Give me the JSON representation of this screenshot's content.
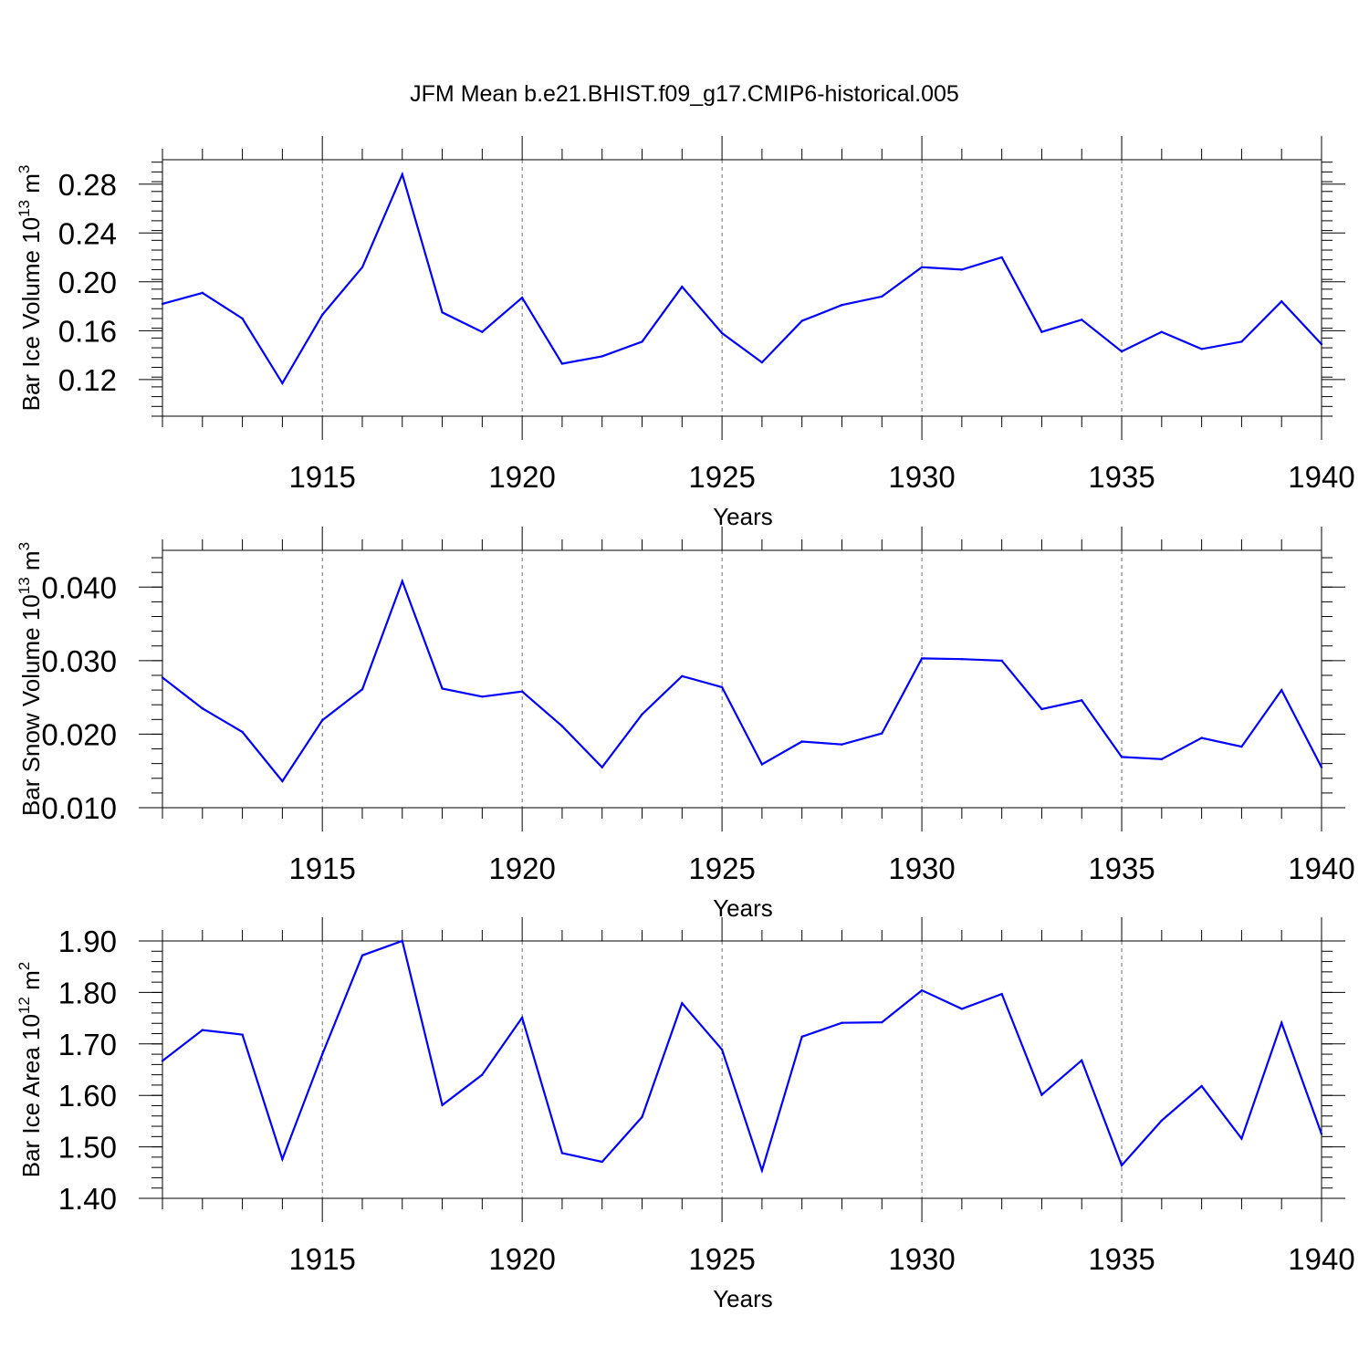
{
  "title": "JFM Mean b.e21.BHIST.f09_g17.CMIP6-historical.005",
  "colors": {
    "line": "#0000ff",
    "axis": "#000000",
    "background": "#ffffff"
  },
  "chart_data": [
    {
      "type": "line",
      "ylabel": {
        "main": "Bar Ice Volume 10",
        "exp": "13",
        "unit": " m",
        "unit_exp": "3"
      },
      "xlabel": "Years",
      "xlim": [
        1911,
        1940
      ],
      "ylim": [
        0.09,
        0.3
      ],
      "yticks": [
        0.12,
        0.16,
        0.2,
        0.24,
        0.28
      ],
      "ytick_labels": [
        "0.12",
        "0.16",
        "0.20",
        "0.24",
        "0.28"
      ],
      "xticks": [
        1915,
        1920,
        1925,
        1930,
        1935,
        1940
      ],
      "xtick_labels": [
        "1915",
        "1920",
        "1925",
        "1930",
        "1935",
        "1940"
      ],
      "grid": "vertical dashed at major x ticks",
      "x": [
        1911,
        1912,
        1913,
        1914,
        1915,
        1916,
        1917,
        1918,
        1919,
        1920,
        1921,
        1922,
        1923,
        1924,
        1925,
        1926,
        1927,
        1928,
        1929,
        1930,
        1931,
        1932,
        1933,
        1934,
        1935,
        1936,
        1937,
        1938,
        1939,
        1940
      ],
      "values": [
        0.182,
        0.191,
        0.17,
        0.117,
        0.173,
        0.212,
        0.288,
        0.175,
        0.159,
        0.187,
        0.133,
        0.139,
        0.151,
        0.196,
        0.158,
        0.134,
        0.168,
        0.181,
        0.188,
        0.212,
        0.21,
        0.22,
        0.159,
        0.169,
        0.143,
        0.159,
        0.145,
        0.151,
        0.184,
        0.149
      ]
    },
    {
      "type": "line",
      "ylabel": {
        "main": "Bar Snow Volume 10",
        "exp": "13",
        "unit": " m",
        "unit_exp": "3"
      },
      "xlabel": "Years",
      "xlim": [
        1911,
        1940
      ],
      "ylim": [
        0.01,
        0.045
      ],
      "yticks": [
        0.01,
        0.02,
        0.03,
        0.04
      ],
      "ytick_labels": [
        "0.010",
        "0.020",
        "0.030",
        "0.040"
      ],
      "xticks": [
        1915,
        1920,
        1925,
        1930,
        1935,
        1940
      ],
      "xtick_labels": [
        "1915",
        "1920",
        "1925",
        "1930",
        "1935",
        "1940"
      ],
      "grid": "vertical dashed at major x ticks",
      "x": [
        1911,
        1912,
        1913,
        1914,
        1915,
        1916,
        1917,
        1918,
        1919,
        1920,
        1921,
        1922,
        1923,
        1924,
        1925,
        1926,
        1927,
        1928,
        1929,
        1930,
        1931,
        1932,
        1933,
        1934,
        1935,
        1936,
        1937,
        1938,
        1939,
        1940
      ],
      "values": [
        0.0277,
        0.0235,
        0.0203,
        0.0136,
        0.0219,
        0.0261,
        0.0408,
        0.0262,
        0.0251,
        0.0258,
        0.0211,
        0.0155,
        0.0227,
        0.0279,
        0.0264,
        0.0159,
        0.019,
        0.0186,
        0.0201,
        0.0303,
        0.0302,
        0.03,
        0.0234,
        0.0246,
        0.0169,
        0.0166,
        0.0195,
        0.0183,
        0.026,
        0.0155
      ]
    },
    {
      "type": "line",
      "ylabel": {
        "main": "Bar Ice Area 10",
        "exp": "12",
        "unit": " m",
        "unit_exp": "2"
      },
      "xlabel": "Years",
      "xlim": [
        1911,
        1940
      ],
      "ylim": [
        1.4,
        1.9
      ],
      "yticks": [
        1.4,
        1.5,
        1.6,
        1.7,
        1.8,
        1.9
      ],
      "ytick_labels": [
        "1.40",
        "1.50",
        "1.60",
        "1.70",
        "1.80",
        "1.90"
      ],
      "xticks": [
        1915,
        1920,
        1925,
        1930,
        1935,
        1940
      ],
      "xtick_labels": [
        "1915",
        "1920",
        "1925",
        "1930",
        "1935",
        "1940"
      ],
      "grid": "vertical dashed at major x ticks",
      "x": [
        1911,
        1912,
        1913,
        1914,
        1915,
        1916,
        1917,
        1918,
        1919,
        1920,
        1921,
        1922,
        1923,
        1924,
        1925,
        1926,
        1927,
        1928,
        1929,
        1930,
        1931,
        1932,
        1933,
        1934,
        1935,
        1936,
        1937,
        1938,
        1939,
        1940
      ],
      "values": [
        1.667,
        1.727,
        1.718,
        1.476,
        1.68,
        1.872,
        1.9,
        1.581,
        1.64,
        1.751,
        1.488,
        1.471,
        1.558,
        1.779,
        1.689,
        1.454,
        1.714,
        1.741,
        1.742,
        1.804,
        1.768,
        1.797,
        1.601,
        1.668,
        1.464,
        1.551,
        1.618,
        1.516,
        1.741,
        1.525
      ]
    }
  ]
}
